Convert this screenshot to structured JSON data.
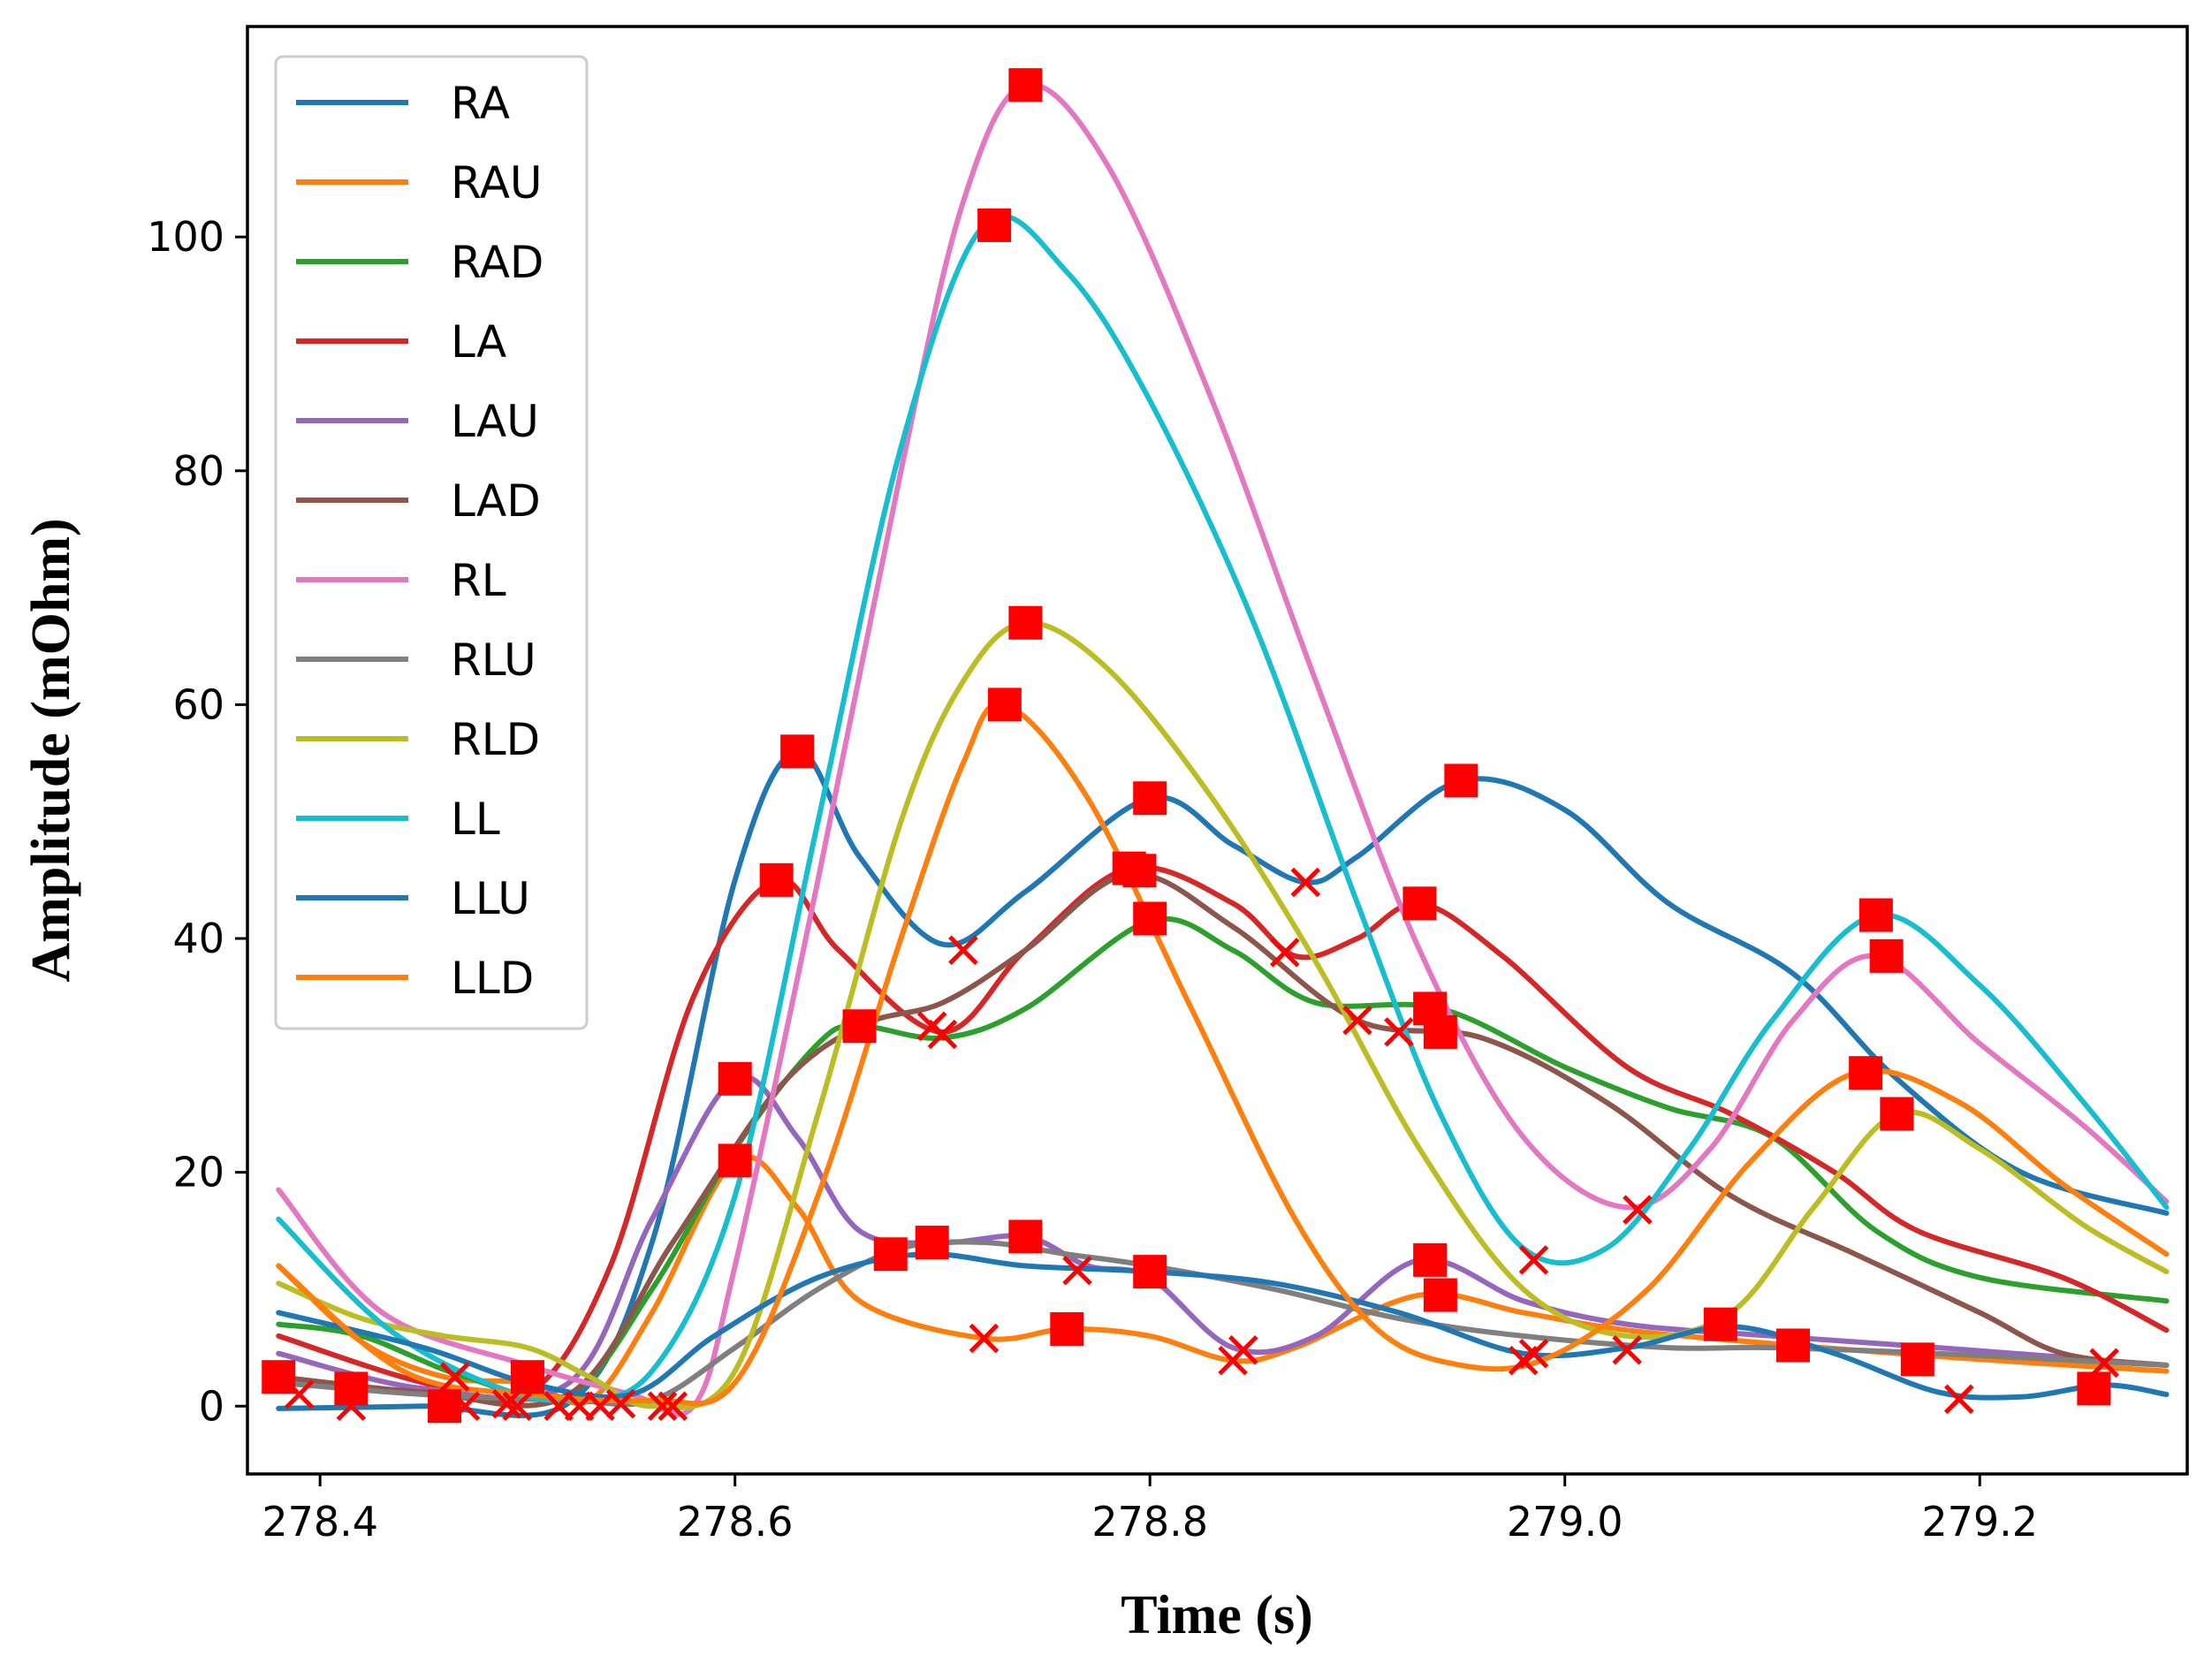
{
  "chart_data": {
    "type": "line",
    "title": "",
    "xlabel": "Time (s)",
    "ylabel": "Amplitude (mOhm)",
    "xlim": [
      278.365,
      279.3
    ],
    "ylim": [
      -5.8,
      118
    ],
    "xticks": [
      "278.4",
      "278.6",
      "278.8",
      "279.0",
      "279.2"
    ],
    "xtick_values": [
      278.4,
      278.6,
      278.8,
      279.0,
      279.2
    ],
    "yticks": [
      "0",
      "20",
      "40",
      "60",
      "80",
      "100"
    ],
    "ytick_values": [
      0,
      20,
      40,
      60,
      80,
      100
    ],
    "legend_position": "top-left",
    "marker_colors": {
      "peak": "#ff0000",
      "trough": "#ff0000"
    },
    "series": [
      {
        "name": "RA",
        "color": "#1f77b4",
        "points": [
          [
            278.38,
            -0.2
          ],
          [
            278.45,
            0
          ],
          [
            278.52,
            0.3
          ],
          [
            278.56,
            14
          ],
          [
            278.6,
            45
          ],
          [
            278.63,
            56
          ],
          [
            278.66,
            47
          ],
          [
            278.7,
            39.5
          ],
          [
            278.74,
            44
          ],
          [
            278.8,
            52
          ],
          [
            278.84,
            48
          ],
          [
            278.875,
            44.8
          ],
          [
            278.9,
            47
          ],
          [
            278.95,
            53.5
          ],
          [
            279.0,
            51
          ],
          [
            279.05,
            43
          ],
          [
            279.11,
            37
          ],
          [
            279.16,
            28
          ],
          [
            279.22,
            20
          ],
          [
            279.29,
            16.5
          ]
        ]
      },
      {
        "name": "RAU",
        "color": "#ff7f0e",
        "points": [
          [
            278.38,
            12
          ],
          [
            278.42,
            5.5
          ],
          [
            278.46,
            2.5
          ],
          [
            278.5,
            2
          ],
          [
            278.53,
            0.5
          ],
          [
            278.56,
            8
          ],
          [
            278.6,
            21
          ],
          [
            278.63,
            17
          ],
          [
            278.66,
            9
          ],
          [
            278.72,
            5.8
          ],
          [
            278.76,
            6.6
          ],
          [
            278.8,
            6
          ],
          [
            278.84,
            3.9
          ],
          [
            278.87,
            5
          ],
          [
            278.93,
            9.5
          ],
          [
            278.98,
            8
          ],
          [
            279.03,
            6.5
          ],
          [
            279.11,
            5.2
          ],
          [
            279.2,
            4
          ],
          [
            279.29,
            3
          ]
        ]
      },
      {
        "name": "RAD",
        "color": "#2ca02c",
        "points": [
          [
            278.38,
            7
          ],
          [
            278.42,
            6
          ],
          [
            278.47,
            2.5
          ],
          [
            278.52,
            1
          ],
          [
            278.56,
            10
          ],
          [
            278.6,
            22
          ],
          [
            278.64,
            31
          ],
          [
            278.66,
            32.5
          ],
          [
            278.7,
            31.5
          ],
          [
            278.74,
            34
          ],
          [
            278.8,
            41.5
          ],
          [
            278.84,
            39
          ],
          [
            278.88,
            34.5
          ],
          [
            278.94,
            34
          ],
          [
            279.0,
            29
          ],
          [
            279.05,
            25.5
          ],
          [
            279.1,
            23
          ],
          [
            279.15,
            15
          ],
          [
            279.2,
            11
          ],
          [
            279.29,
            9
          ]
        ]
      },
      {
        "name": "LA",
        "color": "#d62728",
        "points": [
          [
            278.38,
            6
          ],
          [
            278.45,
            2
          ],
          [
            278.5,
            1
          ],
          [
            278.54,
            12
          ],
          [
            278.58,
            35
          ],
          [
            278.62,
            45
          ],
          [
            278.65,
            39
          ],
          [
            278.7,
            32
          ],
          [
            278.74,
            39
          ],
          [
            278.79,
            46
          ],
          [
            278.84,
            43
          ],
          [
            278.87,
            38.5
          ],
          [
            278.9,
            40
          ],
          [
            278.93,
            43
          ],
          [
            278.97,
            38.5
          ],
          [
            279.03,
            29
          ],
          [
            279.08,
            25
          ],
          [
            279.13,
            20
          ],
          [
            279.17,
            15
          ],
          [
            279.24,
            11
          ],
          [
            279.29,
            6.5
          ]
        ]
      },
      {
        "name": "LAU",
        "color": "#9467bd",
        "points": [
          [
            278.38,
            4.5
          ],
          [
            278.45,
            1.5
          ],
          [
            278.52,
            2
          ],
          [
            278.56,
            16
          ],
          [
            278.6,
            28
          ],
          [
            278.63,
            23
          ],
          [
            278.66,
            15
          ],
          [
            278.7,
            14
          ],
          [
            278.74,
            14.5
          ],
          [
            278.77,
            12
          ],
          [
            278.8,
            11
          ],
          [
            278.84,
            5
          ],
          [
            278.88,
            6
          ],
          [
            278.93,
            12.5
          ],
          [
            278.98,
            9
          ],
          [
            279.03,
            7
          ],
          [
            279.1,
            6
          ],
          [
            279.18,
            5
          ],
          [
            279.29,
            3.5
          ]
        ]
      },
      {
        "name": "LAD",
        "color": "#8c564b",
        "points": [
          [
            278.38,
            2.5
          ],
          [
            278.45,
            1.2
          ],
          [
            278.52,
            1
          ],
          [
            278.57,
            14
          ],
          [
            278.62,
            27
          ],
          [
            278.66,
            32.5
          ],
          [
            278.7,
            34.5
          ],
          [
            278.74,
            39
          ],
          [
            278.79,
            45.5
          ],
          [
            278.84,
            41
          ],
          [
            278.9,
            33
          ],
          [
            278.96,
            31.5
          ],
          [
            279.02,
            26
          ],
          [
            279.08,
            18
          ],
          [
            279.14,
            13
          ],
          [
            279.2,
            8
          ],
          [
            279.24,
            4.5
          ],
          [
            279.29,
            3.5
          ]
        ]
      },
      {
        "name": "RL",
        "color": "#e377c2",
        "points": [
          [
            278.38,
            18.5
          ],
          [
            278.43,
            8
          ],
          [
            278.5,
            3.5
          ],
          [
            278.55,
            1
          ],
          [
            278.58,
            0
          ],
          [
            278.6,
            12
          ],
          [
            278.64,
            45
          ],
          [
            278.68,
            80
          ],
          [
            278.71,
            103
          ],
          [
            278.74,
            113
          ],
          [
            278.78,
            106
          ],
          [
            278.83,
            86
          ],
          [
            278.88,
            62
          ],
          [
            278.93,
            39
          ],
          [
            278.98,
            23
          ],
          [
            279.03,
            17
          ],
          [
            279.07,
            22
          ],
          [
            279.11,
            33
          ],
          [
            279.15,
            38.5
          ],
          [
            279.2,
            31
          ],
          [
            279.25,
            24
          ],
          [
            279.29,
            17.5
          ]
        ]
      },
      {
        "name": "RLU",
        "color": "#7f7f7f",
        "points": [
          [
            278.38,
            2
          ],
          [
            278.45,
            1
          ],
          [
            278.52,
            0.5
          ],
          [
            278.56,
            0.5
          ],
          [
            278.6,
            5
          ],
          [
            278.64,
            10
          ],
          [
            278.68,
            13.5
          ],
          [
            278.72,
            14
          ],
          [
            278.76,
            13
          ],
          [
            278.8,
            12
          ],
          [
            278.86,
            10
          ],
          [
            278.92,
            7.5
          ],
          [
            278.98,
            6
          ],
          [
            279.05,
            5
          ],
          [
            279.1,
            5
          ],
          [
            279.18,
            4.5
          ],
          [
            279.29,
            3.5
          ]
        ]
      },
      {
        "name": "RLD",
        "color": "#bcbd22",
        "points": [
          [
            278.38,
            10.5
          ],
          [
            278.42,
            7.5
          ],
          [
            278.46,
            6
          ],
          [
            278.5,
            5
          ],
          [
            278.53,
            2.5
          ],
          [
            278.56,
            0
          ],
          [
            278.6,
            3
          ],
          [
            278.64,
            25
          ],
          [
            278.68,
            50
          ],
          [
            278.71,
            62
          ],
          [
            278.74,
            67
          ],
          [
            278.78,
            63
          ],
          [
            278.83,
            52
          ],
          [
            278.88,
            38
          ],
          [
            278.93,
            22
          ],
          [
            278.98,
            10
          ],
          [
            279.03,
            6
          ],
          [
            279.08,
            8
          ],
          [
            279.12,
            17
          ],
          [
            279.16,
            25
          ],
          [
            279.2,
            22
          ],
          [
            279.25,
            15.5
          ],
          [
            279.29,
            11.5
          ]
        ]
      },
      {
        "name": "LL",
        "color": "#17becf",
        "points": [
          [
            278.38,
            16
          ],
          [
            278.43,
            7
          ],
          [
            278.48,
            2
          ],
          [
            278.52,
            0.5
          ],
          [
            278.56,
            3
          ],
          [
            278.6,
            18
          ],
          [
            278.64,
            50
          ],
          [
            278.68,
            82
          ],
          [
            278.72,
            101
          ],
          [
            278.76,
            97
          ],
          [
            278.8,
            86
          ],
          [
            278.85,
            67
          ],
          [
            278.9,
            43
          ],
          [
            278.94,
            25
          ],
          [
            278.98,
            13.5
          ],
          [
            279.02,
            13.5
          ],
          [
            279.06,
            22
          ],
          [
            279.1,
            33
          ],
          [
            279.15,
            42
          ],
          [
            279.2,
            36
          ],
          [
            279.25,
            26
          ],
          [
            279.29,
            17
          ]
        ]
      },
      {
        "name": "LLU",
        "color": "#1f77b4",
        "points": [
          [
            278.38,
            8
          ],
          [
            278.45,
            5
          ],
          [
            278.5,
            2
          ],
          [
            278.55,
            1
          ],
          [
            278.59,
            6
          ],
          [
            278.64,
            11
          ],
          [
            278.69,
            13
          ],
          [
            278.74,
            12
          ],
          [
            278.8,
            11.5
          ],
          [
            278.86,
            10.5
          ],
          [
            278.92,
            8
          ],
          [
            278.98,
            4.5
          ],
          [
            279.03,
            5
          ],
          [
            279.08,
            6.8
          ],
          [
            279.13,
            4.5
          ],
          [
            279.18,
            1.2
          ],
          [
            279.22,
            0.8
          ],
          [
            279.26,
            1.8
          ],
          [
            279.29,
            1
          ]
        ]
      },
      {
        "name": "LLD",
        "color": "#ff7f0e",
        "points": [
          [
            278.38,
            12
          ],
          [
            278.44,
            3
          ],
          [
            278.5,
            1
          ],
          [
            278.56,
            0.5
          ],
          [
            278.6,
            2
          ],
          [
            278.64,
            18
          ],
          [
            278.68,
            40
          ],
          [
            278.71,
            55
          ],
          [
            278.73,
            60
          ],
          [
            278.77,
            52
          ],
          [
            278.82,
            34
          ],
          [
            278.87,
            16
          ],
          [
            278.91,
            6.5
          ],
          [
            278.95,
            3.5
          ],
          [
            278.99,
            4
          ],
          [
            279.04,
            10
          ],
          [
            279.09,
            21
          ],
          [
            279.14,
            28.5
          ],
          [
            279.19,
            26
          ],
          [
            279.24,
            19
          ],
          [
            279.29,
            13
          ]
        ]
      }
    ],
    "peak_markers": [
      [
        278.38,
        2.5
      ],
      [
        278.415,
        1.5
      ],
      [
        278.46,
        0
      ],
      [
        278.5,
        2.5
      ],
      [
        278.6,
        21
      ],
      [
        278.6,
        28
      ],
      [
        278.62,
        45
      ],
      [
        278.63,
        56
      ],
      [
        278.66,
        32.5
      ],
      [
        278.675,
        13
      ],
      [
        278.695,
        14
      ],
      [
        278.725,
        101
      ],
      [
        278.73,
        60
      ],
      [
        278.74,
        113
      ],
      [
        278.74,
        67
      ],
      [
        278.74,
        14.5
      ],
      [
        278.76,
        6.6
      ],
      [
        278.79,
        46
      ],
      [
        278.795,
        45.8
      ],
      [
        278.8,
        52
      ],
      [
        278.8,
        41.7
      ],
      [
        278.8,
        11.5
      ],
      [
        278.93,
        43
      ],
      [
        278.935,
        12.5
      ],
      [
        278.935,
        34
      ],
      [
        278.94,
        32
      ],
      [
        278.94,
        9.5
      ],
      [
        278.95,
        53.5
      ],
      [
        279.075,
        7
      ],
      [
        279.11,
        5.2
      ],
      [
        279.145,
        28.5
      ],
      [
        279.15,
        42
      ],
      [
        279.155,
        38.5
      ],
      [
        279.16,
        25
      ],
      [
        279.17,
        4
      ],
      [
        279.255,
        1.5
      ]
    ],
    "trough_markers": [
      [
        278.39,
        1
      ],
      [
        278.415,
        0
      ],
      [
        278.465,
        2.5
      ],
      [
        278.47,
        0
      ],
      [
        278.49,
        0.2
      ],
      [
        278.495,
        0
      ],
      [
        278.515,
        0
      ],
      [
        278.525,
        0
      ],
      [
        278.535,
        0
      ],
      [
        278.545,
        0.2
      ],
      [
        278.565,
        0
      ],
      [
        278.57,
        0
      ],
      [
        278.695,
        32.5
      ],
      [
        278.7,
        31.8
      ],
      [
        278.71,
        39
      ],
      [
        278.72,
        5.8
      ],
      [
        278.765,
        11.6
      ],
      [
        278.84,
        3.9
      ],
      [
        278.845,
        4.8
      ],
      [
        278.865,
        38.8
      ],
      [
        278.875,
        44.8
      ],
      [
        278.9,
        33
      ],
      [
        278.92,
        32
      ],
      [
        278.98,
        3.9
      ],
      [
        278.985,
        4.5
      ],
      [
        278.985,
        12.5
      ],
      [
        279.03,
        4.8
      ],
      [
        279.035,
        16.8
      ],
      [
        279.19,
        0.6
      ],
      [
        279.26,
        3.7
      ]
    ]
  }
}
